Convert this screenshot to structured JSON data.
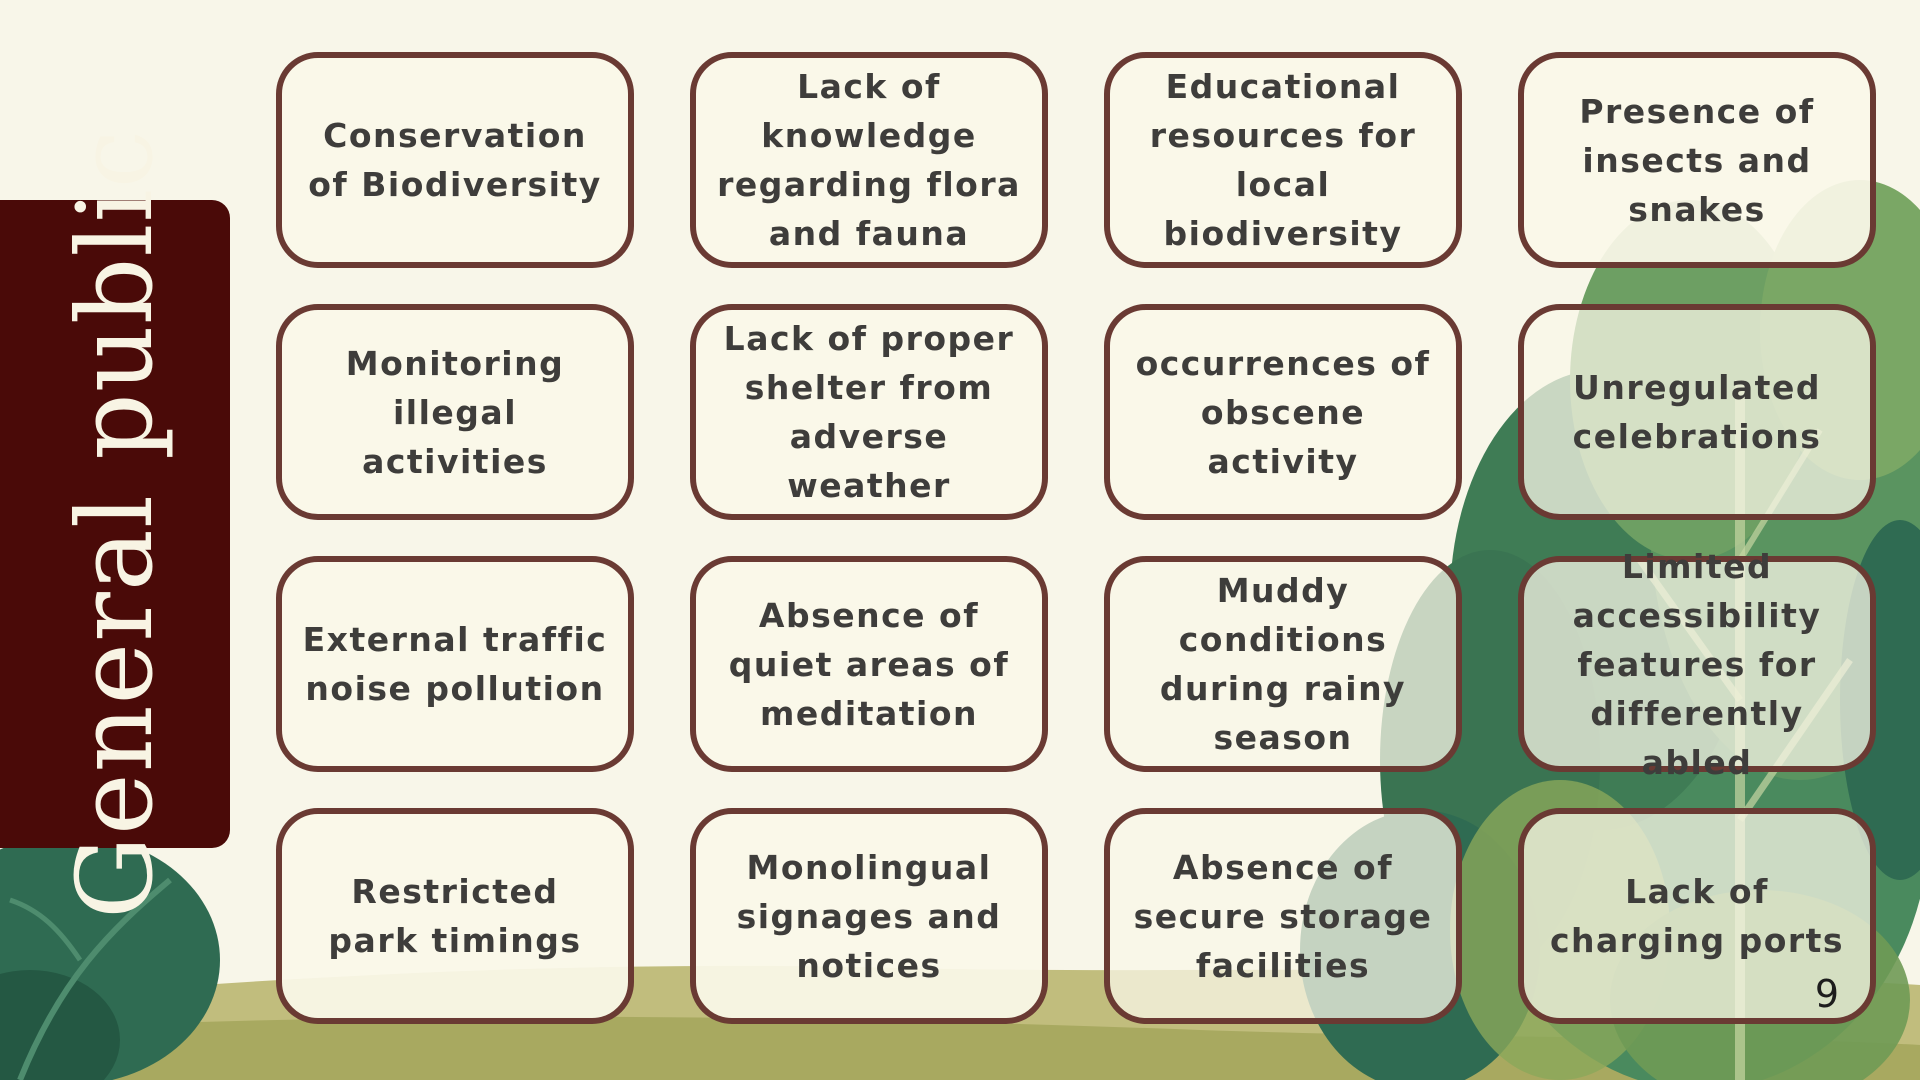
{
  "slide": {
    "title": "General public",
    "page_number": "9",
    "colors": {
      "background": "#f8f6e9",
      "sidebar": "#4a0a08",
      "card_border": "#6a3a33",
      "card_fill": "#faf7e8",
      "text": "#3e3d3b",
      "foliage_dark": "#2f6b52",
      "foliage_light": "#8aa85a",
      "ground": "#b7b36a"
    },
    "decorations": [
      "shrub-illustration",
      "tree-illustration",
      "grass-hill"
    ]
  },
  "cards": [
    "Conservation of Biodiversity",
    "Lack of knowledge regarding flora and fauna",
    "Educational resources for local biodiversity",
    "Presence of insects and snakes",
    "Monitoring illegal activities",
    "Lack of proper shelter from adverse weather",
    "occurrences of obscene activity",
    "Unregulated celebrations",
    "External traffic noise pollution",
    "Absence of quiet areas of meditation",
    "Muddy conditions during rainy season",
    "Limited accessibility features for differently abled",
    "Restricted park timings",
    "Monolingual signages and notices",
    "Absence of secure storage facilities",
    "Lack of charging ports"
  ]
}
